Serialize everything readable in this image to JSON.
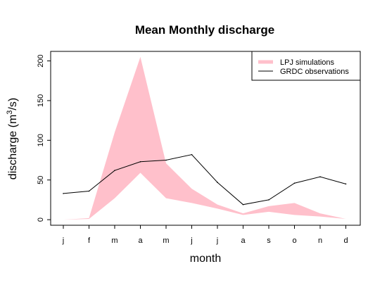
{
  "chart_data": {
    "type": "area",
    "title": "Mean Monthly discharge",
    "xlabel": "month",
    "ylabel_main": "discharge (m",
    "ylabel_sup": "3",
    "ylabel_tail": "/s)",
    "categories": [
      "j",
      "f",
      "m",
      "a",
      "m",
      "j",
      "j",
      "a",
      "s",
      "o",
      "n",
      "d"
    ],
    "ylim": [
      -7,
      212
    ],
    "yticks": [
      0,
      50,
      100,
      150,
      200
    ],
    "grid": false,
    "legend_position": "top-right",
    "series": [
      {
        "name": "LPJ simulations",
        "kind": "band",
        "color": "#ffc0cb",
        "lower": [
          0,
          1,
          27,
          59,
          27,
          21,
          14,
          6,
          10,
          6,
          4,
          1
        ],
        "upper": [
          0,
          2,
          110,
          205,
          71,
          39,
          19,
          8,
          17,
          21,
          8,
          1
        ]
      },
      {
        "name": "GRDC observations",
        "kind": "line",
        "color": "#000000",
        "values": [
          33,
          36,
          62,
          73,
          75,
          82,
          47,
          19,
          25,
          46,
          54,
          45
        ]
      }
    ]
  }
}
